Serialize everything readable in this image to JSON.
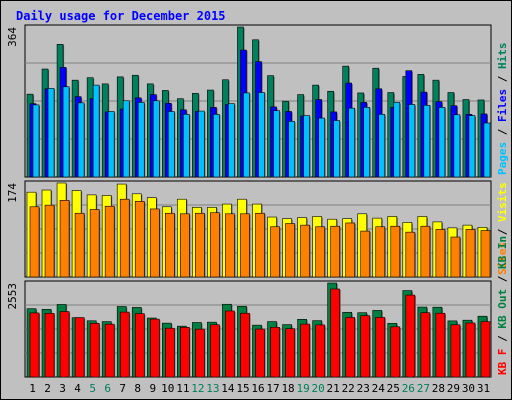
{
  "chart_data": {
    "type": "bar",
    "title": "Daily usage for December 2015",
    "colors": {
      "background": "#c0c0c0",
      "frame": "#000000",
      "title": "#0000ff",
      "hits": "#00805c",
      "files": "#0000ff",
      "pages": "#00c0ff",
      "visits": "#ffff00",
      "sites": "#ff8000",
      "kb_in": "#008040",
      "kb_out": "#ff0000",
      "weekend_tick": "#00805c",
      "weekday_tick": "#000000"
    },
    "days": [
      "1",
      "2",
      "3",
      "4",
      "5",
      "6",
      "7",
      "8",
      "9",
      "10",
      "11",
      "12",
      "13",
      "14",
      "15",
      "16",
      "17",
      "18",
      "19",
      "20",
      "21",
      "22",
      "23",
      "24",
      "25",
      "26",
      "27",
      "28",
      "29",
      "30",
      "31"
    ],
    "weekend_days": [
      "5",
      "6",
      "12",
      "13",
      "19",
      "20",
      "26",
      "27"
    ],
    "panels": [
      {
        "max_label": "364",
        "labels": [
          {
            "text": "Hits",
            "color": "#00805c"
          },
          {
            "text": "Files",
            "color": "#0000ff"
          },
          {
            "text": "Pages",
            "color": "#00c0ff"
          }
        ],
        "ymax": 364,
        "series": [
          {
            "name": "Hits",
            "color": "#00805c",
            "values": [
              201,
              262,
              322,
              235,
              241,
              226,
              243,
              247,
              226,
              210,
              190,
              203,
              211,
              236,
              364,
              333,
              246,
              184,
              200,
              223,
              208,
              269,
              204,
              264,
              205,
              244,
              249,
              235,
              205,
              188,
              187
            ]
          },
          {
            "name": "Files",
            "color": "#0000ff",
            "values": [
              178,
              214,
              266,
              195,
              190,
              158,
              165,
              192,
              200,
              179,
              163,
              159,
              169,
              176,
              308,
              280,
              170,
              159,
              148,
              188,
              158,
              228,
              181,
              214,
              169,
              258,
              206,
              183,
              173,
              152,
              153
            ]
          },
          {
            "name": "Pages",
            "color": "#00c0ff",
            "values": [
              175,
              215,
              219,
              180,
              223,
              159,
              185,
              181,
              185,
              159,
              152,
              160,
              152,
              178,
              204,
              205,
              161,
              135,
              149,
              143,
              137,
              167,
              169,
              152,
              181,
              176,
              174,
              169,
              151,
              149,
              131
            ]
          }
        ]
      },
      {
        "max_label": "174",
        "labels": [
          {
            "text": "Visits",
            "color": "#ffff00"
          },
          {
            "text": "Sites",
            "color": "#ff8000"
          }
        ],
        "ymax": 174,
        "series": [
          {
            "name": "Visits",
            "color": "#ffff00",
            "values": [
              157,
              161,
              174,
              160,
              152,
              151,
              172,
              154,
              147,
              130,
              144,
              129,
              129,
              135,
              144,
              135,
              111,
              108,
              110,
              112,
              107,
              108,
              117,
              109,
              112,
              101,
              112,
              102,
              91,
              96,
              92
            ]
          },
          {
            "name": "Sites",
            "color": "#ff8000",
            "values": [
              130,
              133,
              142,
              118,
              125,
              131,
              144,
              140,
              126,
              118,
              117,
              118,
              119,
              117,
              117,
              118,
              93,
              99,
              96,
              93,
              94,
              100,
              85,
              93,
              94,
              83,
              94,
              88,
              74,
              88,
              86
            ]
          }
        ]
      },
      {
        "max_label": "2553",
        "labels": [
          {
            "text": "KB In",
            "color": "#008040"
          },
          {
            "text": "KB Out",
            "color": "#008040"
          },
          {
            "text": "KB F",
            "color": "#ff0000"
          }
        ],
        "ymax": 2553,
        "series": [
          {
            "name": "KB In",
            "color": "#008040",
            "values": [
              1855,
              1838,
              1970,
              1610,
              1527,
              1505,
              1915,
              1890,
              1602,
              1463,
              1381,
              1480,
              1489,
              1976,
              1921,
              1408,
              1505,
              1423,
              1567,
              1530,
              2553,
              1758,
              1746,
              1808,
              1458,
              2347,
              1899,
              1896,
              1524,
              1543,
              1651
            ]
          },
          {
            "name": "KB Out",
            "color": "#ff0000",
            "values": [
              1740,
              1729,
              1777,
              1614,
              1458,
              1435,
              1763,
              1722,
              1572,
              1325,
              1349,
              1300,
              1419,
              1793,
              1732,
              1302,
              1350,
              1312,
              1437,
              1415,
              2390,
              1616,
              1665,
              1618,
              1362,
              2225,
              1746,
              1733,
              1418,
              1468,
              1505
            ]
          }
        ]
      }
    ]
  }
}
